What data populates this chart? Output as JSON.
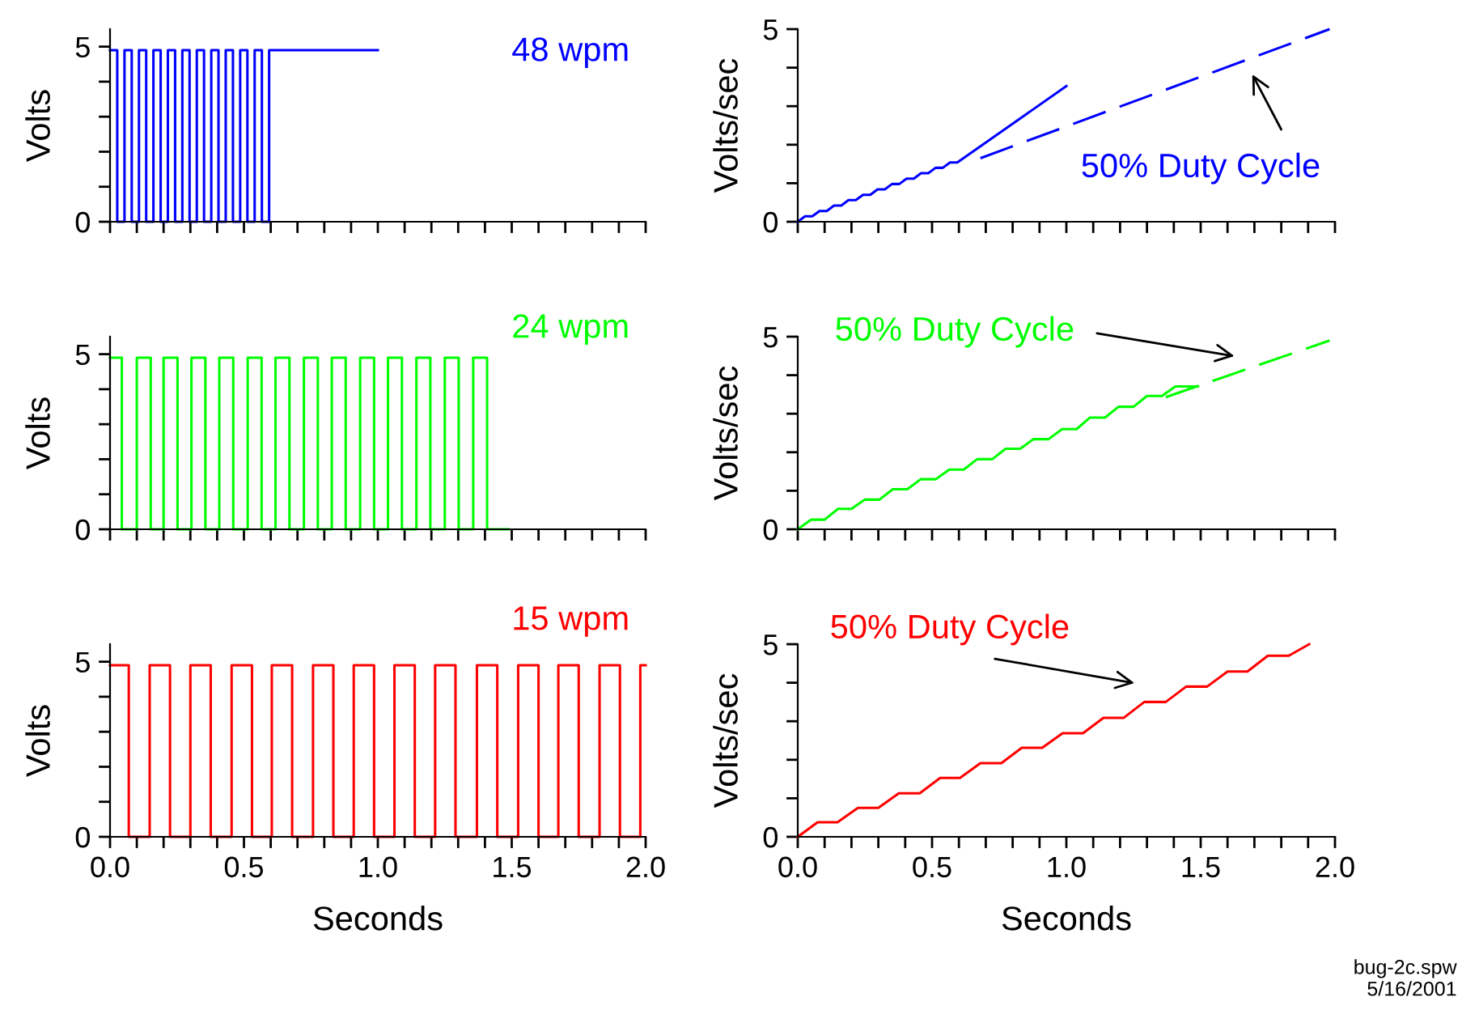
{
  "chart_data": [
    {
      "type": "step",
      "ylabel": "Volts",
      "xlim": [
        0,
        2.0
      ],
      "ylim": [
        0,
        5.5
      ],
      "tick_labels": "y",
      "xticks": [
        {
          "value": 0,
          "label": null
        },
        {
          "value": 0.1,
          "label": null
        },
        {
          "value": 0.2,
          "label": null
        },
        {
          "value": 0.3,
          "label": null
        },
        {
          "value": 0.4,
          "label": null
        },
        {
          "value": 0.5,
          "label": null
        },
        {
          "value": 0.6,
          "label": null
        },
        {
          "value": 0.7,
          "label": null
        },
        {
          "value": 0.8,
          "label": null
        },
        {
          "value": 0.9,
          "label": null
        },
        {
          "value": 1.0,
          "label": null
        },
        {
          "value": 1.1,
          "label": null
        },
        {
          "value": 1.2,
          "label": null
        },
        {
          "value": 1.3,
          "label": null
        },
        {
          "value": 1.4,
          "label": null
        },
        {
          "value": 1.5,
          "label": null
        },
        {
          "value": 1.6,
          "label": null
        },
        {
          "value": 1.7,
          "label": null
        },
        {
          "value": 1.8,
          "label": null
        },
        {
          "value": 1.9,
          "label": null
        },
        {
          "value": 2.0,
          "label": null
        }
      ],
      "yticks": [
        0,
        {
          "value": 1,
          "label": null
        },
        {
          "value": 2,
          "label": null
        },
        {
          "value": 3,
          "label": null
        },
        {
          "value": 4,
          "label": null
        },
        5
      ],
      "series": [
        {
          "name": "48 wpm",
          "color": "#0000ff",
          "x": [
            0,
            0.027,
            0.054,
            0.081,
            0.108,
            0.135,
            0.162,
            0.189,
            0.216,
            0.243,
            0.27,
            0.297,
            0.324,
            0.351,
            0.378,
            0.405,
            0.432,
            0.459,
            0.486,
            0.513,
            0.54,
            0.567,
            0.594,
            1.0
          ],
          "values": [
            4.9,
            0,
            4.9,
            0,
            4.9,
            0,
            4.9,
            0,
            4.9,
            0,
            4.9,
            0,
            4.9,
            0,
            4.9,
            0,
            4.9,
            0,
            4.9,
            0,
            4.9,
            0,
            4.9,
            4.9
          ]
        }
      ]
    },
    {
      "type": "line",
      "ylabel": "Volts/sec",
      "xlim": [
        0,
        2.0
      ],
      "ylim": [
        0,
        5
      ],
      "tick_labels": "y",
      "xticks": [
        {
          "value": 0,
          "label": null
        },
        {
          "value": 0.1,
          "label": null
        },
        {
          "value": 0.2,
          "label": null
        },
        {
          "value": 0.3,
          "label": null
        },
        {
          "value": 0.4,
          "label": null
        },
        {
          "value": 0.5,
          "label": null
        },
        {
          "value": 0.6,
          "label": null
        },
        {
          "value": 0.7,
          "label": null
        },
        {
          "value": 0.8,
          "label": null
        },
        {
          "value": 0.9,
          "label": null
        },
        {
          "value": 1.0,
          "label": null
        },
        {
          "value": 1.1,
          "label": null
        },
        {
          "value": 1.2,
          "label": null
        },
        {
          "value": 1.3,
          "label": null
        },
        {
          "value": 1.4,
          "label": null
        },
        {
          "value": 1.5,
          "label": null
        },
        {
          "value": 1.6,
          "label": null
        },
        {
          "value": 1.7,
          "label": null
        },
        {
          "value": 1.8,
          "label": null
        },
        {
          "value": 1.9,
          "label": null
        },
        {
          "value": 2.0,
          "label": null
        }
      ],
      "yticks": [
        0,
        {
          "value": 1,
          "label": null
        },
        {
          "value": 2,
          "label": null
        },
        {
          "value": 3,
          "label": null
        },
        {
          "value": 4,
          "label": null
        },
        5
      ],
      "series": [
        {
          "color": "#0000ff",
          "x": [
            0,
            0.027,
            0.054,
            0.081,
            0.108,
            0.135,
            0.162,
            0.189,
            0.216,
            0.243,
            0.27,
            0.297,
            0.324,
            0.351,
            0.378,
            0.405,
            0.432,
            0.459,
            0.486,
            0.513,
            0.54,
            0.567,
            0.594,
            1.0
          ],
          "values": [
            0,
            0.14,
            0.14,
            0.28,
            0.28,
            0.42,
            0.42,
            0.56,
            0.56,
            0.7,
            0.7,
            0.84,
            0.84,
            0.98,
            0.98,
            1.12,
            1.12,
            1.26,
            1.26,
            1.4,
            1.4,
            1.54,
            1.54,
            3.52
          ]
        },
        {
          "color": "#0000ff",
          "line_style": "dashed",
          "x": [
            0.68,
            1.98
          ],
          "values": [
            1.65,
            5.0
          ]
        }
      ],
      "annotations": [
        "50% Duty Cycle"
      ]
    },
    {
      "type": "step",
      "ylabel": "Volts",
      "xlim": [
        0,
        2.0
      ],
      "ylim": [
        0,
        5.5
      ],
      "tick_labels": "y",
      "xticks": [
        {
          "value": 0,
          "label": null
        },
        {
          "value": 0.1,
          "label": null
        },
        {
          "value": 0.2,
          "label": null
        },
        {
          "value": 0.3,
          "label": null
        },
        {
          "value": 0.4,
          "label": null
        },
        {
          "value": 0.5,
          "label": null
        },
        {
          "value": 0.6,
          "label": null
        },
        {
          "value": 0.7,
          "label": null
        },
        {
          "value": 0.8,
          "label": null
        },
        {
          "value": 0.9,
          "label": null
        },
        {
          "value": 1.0,
          "label": null
        },
        {
          "value": 1.1,
          "label": null
        },
        {
          "value": 1.2,
          "label": null
        },
        {
          "value": 1.3,
          "label": null
        },
        {
          "value": 1.4,
          "label": null
        },
        {
          "value": 1.5,
          "label": null
        },
        {
          "value": 1.6,
          "label": null
        },
        {
          "value": 1.7,
          "label": null
        },
        {
          "value": 1.8,
          "label": null
        },
        {
          "value": 1.9,
          "label": null
        },
        {
          "value": 2.0,
          "label": null
        }
      ],
      "yticks": [
        0,
        {
          "value": 1,
          "label": null
        },
        {
          "value": 2,
          "label": null
        },
        {
          "value": 3,
          "label": null
        },
        {
          "value": 4,
          "label": null
        },
        5
      ],
      "series": [
        {
          "name": "24 wpm",
          "color": "#00ff00",
          "x": [
            0,
            0.044,
            0.1,
            0.152,
            0.2,
            0.252,
            0.304,
            0.356,
            0.408,
            0.46,
            0.514,
            0.566,
            0.618,
            0.67,
            0.724,
            0.776,
            0.828,
            0.88,
            0.934,
            0.986,
            1.038,
            1.09,
            1.144,
            1.196,
            1.25,
            1.302,
            1.356,
            1.408,
            1.488
          ],
          "values": [
            4.9,
            0,
            4.9,
            0,
            4.9,
            0,
            4.9,
            0,
            4.9,
            0,
            4.9,
            0,
            4.9,
            0,
            4.9,
            0,
            4.9,
            0,
            4.9,
            0,
            4.9,
            0,
            4.9,
            0,
            4.9,
            0,
            4.9,
            0,
            0
          ]
        }
      ]
    },
    {
      "type": "line",
      "ylabel": "Volts/sec",
      "xlim": [
        0,
        2.0
      ],
      "ylim": [
        0,
        5
      ],
      "tick_labels": "y",
      "xticks": [
        {
          "value": 0,
          "label": null
        },
        {
          "value": 0.1,
          "label": null
        },
        {
          "value": 0.2,
          "label": null
        },
        {
          "value": 0.3,
          "label": null
        },
        {
          "value": 0.4,
          "label": null
        },
        {
          "value": 0.5,
          "label": null
        },
        {
          "value": 0.6,
          "label": null
        },
        {
          "value": 0.7,
          "label": null
        },
        {
          "value": 0.8,
          "label": null
        },
        {
          "value": 0.9,
          "label": null
        },
        {
          "value": 1.0,
          "label": null
        },
        {
          "value": 1.1,
          "label": null
        },
        {
          "value": 1.2,
          "label": null
        },
        {
          "value": 1.3,
          "label": null
        },
        {
          "value": 1.4,
          "label": null
        },
        {
          "value": 1.5,
          "label": null
        },
        {
          "value": 1.6,
          "label": null
        },
        {
          "value": 1.7,
          "label": null
        },
        {
          "value": 1.8,
          "label": null
        },
        {
          "value": 1.9,
          "label": null
        },
        {
          "value": 2.0,
          "label": null
        }
      ],
      "yticks": [
        0,
        {
          "value": 1,
          "label": null
        },
        {
          "value": 2,
          "label": null
        },
        {
          "value": 3,
          "label": null
        },
        {
          "value": 4,
          "label": null
        },
        5
      ],
      "series": [
        {
          "color": "#00ff00",
          "x": [
            0,
            0.05,
            0.1,
            0.15,
            0.2,
            0.25,
            0.304,
            0.354,
            0.408,
            0.458,
            0.514,
            0.564,
            0.618,
            0.668,
            0.724,
            0.774,
            0.828,
            0.878,
            0.934,
            0.984,
            1.038,
            1.088,
            1.144,
            1.194,
            1.25,
            1.3,
            1.356,
            1.406,
            1.49
          ],
          "values": [
            0,
            0.25,
            0.25,
            0.53,
            0.53,
            0.77,
            0.77,
            1.04,
            1.04,
            1.3,
            1.3,
            1.55,
            1.55,
            1.82,
            1.82,
            2.09,
            2.09,
            2.34,
            2.34,
            2.6,
            2.6,
            2.9,
            2.9,
            3.18,
            3.18,
            3.46,
            3.46,
            3.71,
            3.71
          ]
        },
        {
          "color": "#00ff00",
          "line_style": "dashed",
          "x": [
            1.37,
            1.98
          ],
          "values": [
            3.43,
            4.9
          ]
        }
      ],
      "annotations": [
        "50% Duty Cycle"
      ]
    },
    {
      "type": "step",
      "ylabel": "Volts",
      "xlabel": "Seconds",
      "xlim": [
        0,
        2.0
      ],
      "ylim": [
        0,
        5.5
      ],
      "xticks": [
        {
          "value": 0,
          "label": "0.0"
        },
        {
          "value": 0.1,
          "label": null
        },
        {
          "value": 0.2,
          "label": null
        },
        {
          "value": 0.3,
          "label": null
        },
        {
          "value": 0.4,
          "label": null
        },
        {
          "value": 0.5,
          "label": "0.5"
        },
        {
          "value": 0.6,
          "label": null
        },
        {
          "value": 0.7,
          "label": null
        },
        {
          "value": 0.8,
          "label": null
        },
        {
          "value": 0.9,
          "label": null
        },
        {
          "value": 1.0,
          "label": "1.0"
        },
        {
          "value": 1.1,
          "label": null
        },
        {
          "value": 1.2,
          "label": null
        },
        {
          "value": 1.3,
          "label": null
        },
        {
          "value": 1.4,
          "label": null
        },
        {
          "value": 1.5,
          "label": "1.5"
        },
        {
          "value": 1.6,
          "label": null
        },
        {
          "value": 1.7,
          "label": null
        },
        {
          "value": 1.8,
          "label": null
        },
        {
          "value": 1.9,
          "label": null
        },
        {
          "value": 2.0,
          "label": "2.0"
        }
      ],
      "yticks": [
        0,
        {
          "value": 1,
          "label": null
        },
        {
          "value": 2,
          "label": null
        },
        {
          "value": 3,
          "label": null
        },
        {
          "value": 4,
          "label": null
        },
        5
      ],
      "series": [
        {
          "name": "15 wpm",
          "color": "#ff0000",
          "x": [
            0,
            0.07,
            0.148,
            0.224,
            0.3,
            0.376,
            0.454,
            0.53,
            0.604,
            0.68,
            0.758,
            0.834,
            0.91,
            0.986,
            1.062,
            1.138,
            1.214,
            1.29,
            1.37,
            1.446,
            1.524,
            1.6,
            1.674,
            1.75,
            1.828,
            1.904,
            1.98,
            2.0
          ],
          "values": [
            4.9,
            0,
            4.9,
            0,
            4.9,
            0,
            4.9,
            0,
            4.9,
            0,
            4.9,
            0,
            4.9,
            0,
            4.9,
            0,
            4.9,
            0,
            4.9,
            0,
            4.9,
            0,
            4.9,
            0,
            4.9,
            0,
            4.9,
            4.9
          ]
        }
      ]
    },
    {
      "type": "line",
      "ylabel": "Volts/sec",
      "xlabel": "Seconds",
      "xlim": [
        0,
        2.0
      ],
      "ylim": [
        0,
        5
      ],
      "xticks": [
        {
          "value": 0,
          "label": "0.0"
        },
        {
          "value": 0.1,
          "label": null
        },
        {
          "value": 0.2,
          "label": null
        },
        {
          "value": 0.3,
          "label": null
        },
        {
          "value": 0.4,
          "label": null
        },
        {
          "value": 0.5,
          "label": "0.5"
        },
        {
          "value": 0.6,
          "label": null
        },
        {
          "value": 0.7,
          "label": null
        },
        {
          "value": 0.8,
          "label": null
        },
        {
          "value": 0.9,
          "label": null
        },
        {
          "value": 1.0,
          "label": "1.0"
        },
        {
          "value": 1.1,
          "label": null
        },
        {
          "value": 1.2,
          "label": null
        },
        {
          "value": 1.3,
          "label": null
        },
        {
          "value": 1.4,
          "label": null
        },
        {
          "value": 1.5,
          "label": "1.5"
        },
        {
          "value": 1.6,
          "label": null
        },
        {
          "value": 1.7,
          "label": null
        },
        {
          "value": 1.8,
          "label": null
        },
        {
          "value": 1.9,
          "label": null
        },
        {
          "value": 2.0,
          "label": "2.0"
        }
      ],
      "yticks": [
        0,
        {
          "value": 1,
          "label": null
        },
        {
          "value": 2,
          "label": null
        },
        {
          "value": 3,
          "label": null
        },
        {
          "value": 4,
          "label": null
        },
        5
      ],
      "series": [
        {
          "color": "#ff0000",
          "x": [
            0,
            0.074,
            0.148,
            0.224,
            0.3,
            0.376,
            0.454,
            0.53,
            0.604,
            0.68,
            0.758,
            0.834,
            0.91,
            0.986,
            1.062,
            1.138,
            1.214,
            1.29,
            1.37,
            1.446,
            1.524,
            1.6,
            1.674,
            1.75,
            1.828,
            1.904
          ],
          "values": [
            0,
            0.38,
            0.38,
            0.75,
            0.75,
            1.13,
            1.13,
            1.53,
            1.53,
            1.91,
            1.91,
            2.31,
            2.31,
            2.69,
            2.69,
            3.09,
            3.09,
            3.5,
            3.5,
            3.9,
            3.9,
            4.29,
            4.29,
            4.7,
            4.7,
            5.0
          ]
        }
      ],
      "annotations": [
        "50% Duty Cycle",
        "bug-2c.spw\n5/16/2001"
      ]
    }
  ]
}
